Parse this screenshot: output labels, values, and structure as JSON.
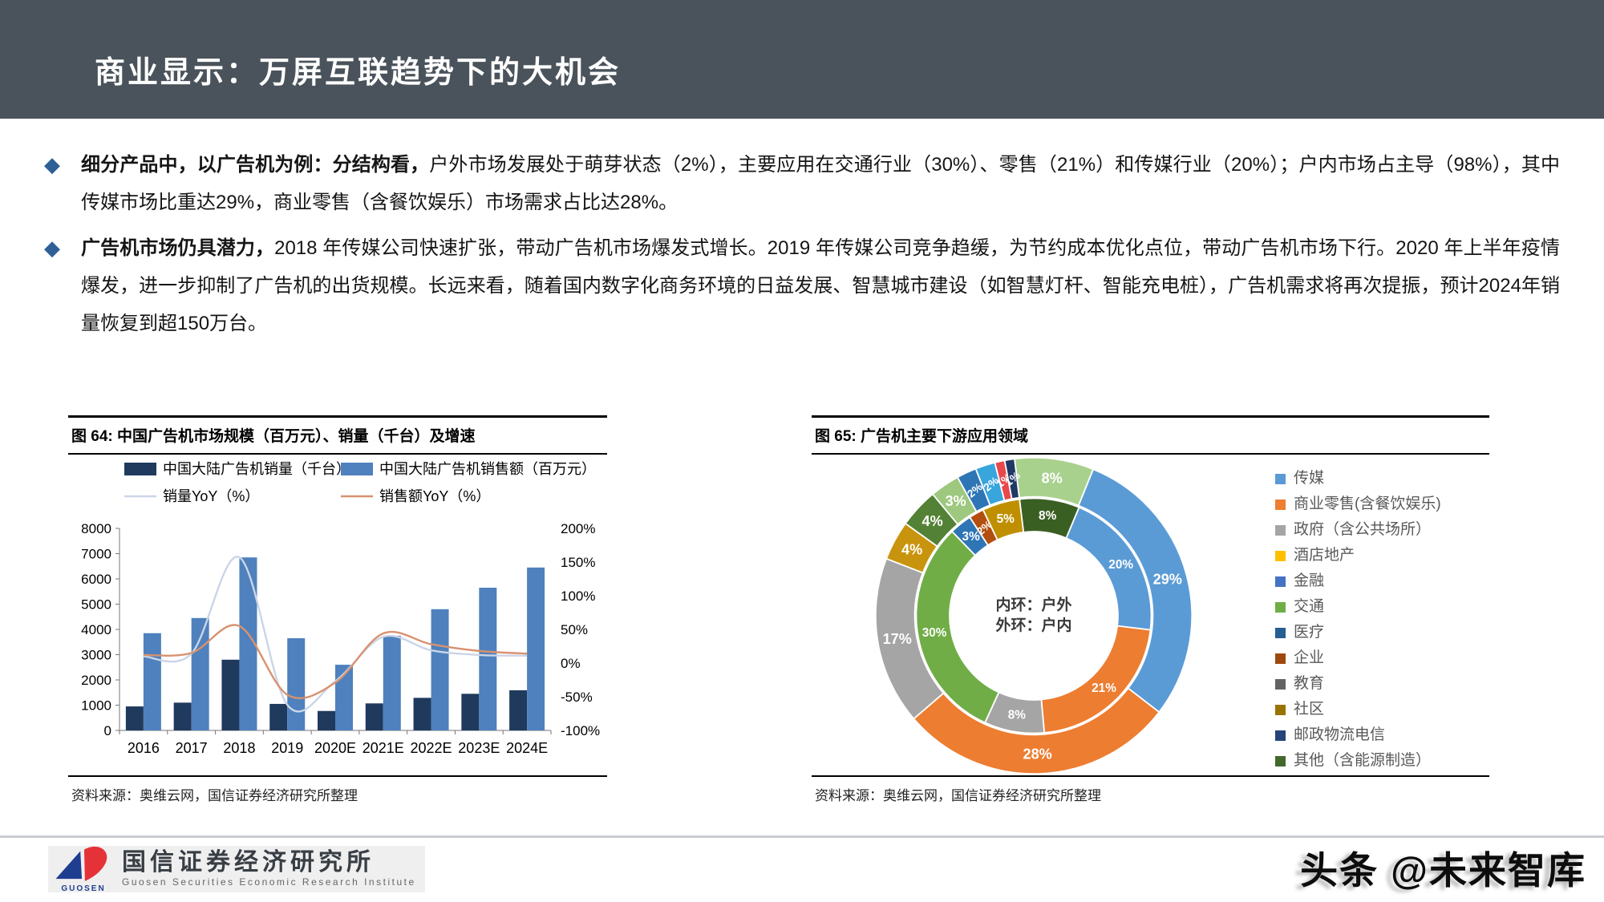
{
  "header": {
    "title": "商业显示：万屏互联趋势下的大机会"
  },
  "bullet_marker": "◆",
  "bullets": [
    {
      "bold": "细分产品中，以广告机为例：分结构看，",
      "text": "户外市场发展处于萌芽状态（2%），主要应用在交通行业（30%）、零售（21%）和传媒行业（20%）；户内市场占主导（98%），其中传媒市场比重达29%，商业零售（含餐饮娱乐）市场需求占比达28%。"
    },
    {
      "bold": "广告机市场仍具潜力，",
      "text": "2018 年传媒公司快速扩张，带动广告机市场爆发式增长。2019 年传媒公司竞争趋缓，为节约成本优化点位，带动广告机市场下行。2020 年上半年疫情爆发，进一步抑制了广告机的出货规模。长远来看，随着国内数字化商务环境的日益发展、智慧城市建设（如智慧灯杆、智能充电桩），广告机需求将再次提振，预计2024年销量恢复到超150万台。"
    }
  ],
  "figures": {
    "fig64": {
      "title": "图 64:  中国广告机市场规模（百万元）、销量（千台）及增速",
      "source": "资料来源：奥维云网，国信证券经济研究所整理"
    },
    "fig65": {
      "title": "图 65:  广告机主要下游应用领域",
      "source": "资料来源：奥维云网，国信证券经济研究所整理"
    }
  },
  "footer": {
    "logo_mark_text": "GUOSEN",
    "logo_cn": "国信证券经济研究所",
    "logo_en": "Guosen Securities Economic Research Institute",
    "watermark": "头条 @未来智库"
  },
  "chart_data": [
    {
      "type": "bar",
      "title": "中国广告机市场规模（百万元）、销量（千台）及增速",
      "categories": [
        "2016",
        "2017",
        "2018",
        "2019",
        "2020E",
        "2021E",
        "2022E",
        "2023E",
        "2024E"
      ],
      "series": [
        {
          "name": "中国大陆广告机销量（千台）",
          "kind": "bar",
          "axis": "left",
          "color": "#1F3A5C",
          "values": [
            950,
            1100,
            2800,
            1050,
            770,
            1070,
            1290,
            1450,
            1590
          ]
        },
        {
          "name": "中国大陆广告机销售额（百万元）",
          "kind": "bar",
          "axis": "left",
          "color": "#4E81BD",
          "values": [
            3850,
            4450,
            6850,
            3650,
            2600,
            3750,
            4800,
            5650,
            6450
          ]
        },
        {
          "name": "销量YoY（%）",
          "kind": "line",
          "axis": "right",
          "color": "#CBD5E8",
          "values": [
            10,
            14,
            157,
            -62,
            -27,
            39,
            19,
            12,
            11
          ]
        },
        {
          "name": "销售额YoY（%）",
          "kind": "line",
          "axis": "right",
          "color": "#D8926F",
          "values": [
            12,
            15,
            55,
            -47,
            -29,
            44,
            28,
            18,
            14
          ]
        }
      ],
      "left_axis": {
        "min": 0,
        "max": 8000,
        "step": 1000,
        "suffix": ""
      },
      "right_axis": {
        "min": -100,
        "max": 200,
        "step": 50,
        "suffix": "%"
      },
      "grid": false,
      "legend_position": "top"
    },
    {
      "type": "pie",
      "subtype": "double-doughnut",
      "title": "广告机主要下游应用领域",
      "center_lines": [
        "内环：户外",
        "外环：户内"
      ],
      "start_angle_deg": -7,
      "rings": [
        {
          "name": "outer-ring-indoor",
          "slices": [
            {
              "label": "8%",
              "pct": 8,
              "name": "",
              "color": "#A9D18E"
            },
            {
              "label": "29%",
              "pct": 29,
              "name": "传媒",
              "color": "#5B9BD5"
            },
            {
              "label": "28%",
              "pct": 28,
              "name": "商业零售(含餐饮娱乐)",
              "color": "#ED7D31"
            },
            {
              "label": "17%",
              "pct": 17,
              "name": "政府（含公共场所）",
              "color": "#A5A5A5"
            },
            {
              "label": "4%",
              "pct": 4,
              "name": "",
              "color": "#C9940D"
            },
            {
              "label": "4%",
              "pct": 4,
              "name": "",
              "color": "#538135"
            },
            {
              "label": "3%",
              "pct": 3,
              "name": "",
              "color": "#9DC87E"
            },
            {
              "label": "2%",
              "pct": 2,
              "name": "",
              "color": "#2E75B6"
            },
            {
              "label": "2%",
              "pct": 2,
              "name": "",
              "color": "#38A5DC"
            },
            {
              "label": "1%",
              "pct": 1,
              "name": "",
              "color": "#E8474B"
            },
            {
              "label": "1%",
              "pct": 1,
              "name": "",
              "color": "#1F3864"
            }
          ]
        },
        {
          "name": "inner-ring-outdoor",
          "slices": [
            {
              "label": "8%",
              "pct": 8,
              "name": "其他（含能源制造）",
              "color": "#3A5F23"
            },
            {
              "label": "20%",
              "pct": 20,
              "name": "传媒",
              "color": "#5B9BD5"
            },
            {
              "label": "21%",
              "pct": 21,
              "name": "商业零售(含餐饮娱乐)",
              "color": "#ED7D31"
            },
            {
              "label": "8%",
              "pct": 8,
              "name": "政府（含公共场所）",
              "color": "#A5A5A5"
            },
            {
              "label": "30%",
              "pct": 30,
              "name": "交通",
              "color": "#70AD47"
            },
            {
              "label": "3%",
              "pct": 3,
              "name": "",
              "color": "#2E75B6"
            },
            {
              "label": "2%",
              "pct": 2,
              "name": "",
              "color": "#B34F0E"
            },
            {
              "label": "5%",
              "pct": 5,
              "name": "",
              "color": "#BF8F00"
            }
          ]
        }
      ],
      "legend": [
        {
          "name": "传媒",
          "color": "#5B9BD5"
        },
        {
          "name": "商业零售(含餐饮娱乐)",
          "color": "#ED7D31"
        },
        {
          "name": "政府（含公共场所）",
          "color": "#A5A5A5"
        },
        {
          "name": "酒店地产",
          "color": "#FFC000"
        },
        {
          "name": "金融",
          "color": "#4472C4"
        },
        {
          "name": "交通",
          "color": "#70AD47"
        },
        {
          "name": "医疗",
          "color": "#255E91"
        },
        {
          "name": "企业",
          "color": "#9E480E"
        },
        {
          "name": "教育",
          "color": "#636363"
        },
        {
          "name": "社区",
          "color": "#997300"
        },
        {
          "name": "邮政物流电信",
          "color": "#264478"
        },
        {
          "name": "其他（含能源制造）",
          "color": "#43682B"
        }
      ],
      "legend_position": "right"
    }
  ]
}
